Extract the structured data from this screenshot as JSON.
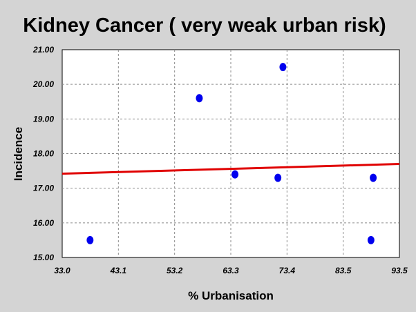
{
  "chart_data": {
    "type": "scatter",
    "title": "Kidney Cancer ( very weak urban risk)",
    "xlabel": "% Urbanisation",
    "ylabel": "Incidence",
    "xlim": [
      33.0,
      93.5
    ],
    "ylim": [
      15.0,
      21.0
    ],
    "x_ticks": [
      "33.0",
      "43.1",
      "53.2",
      "63.3",
      "73.4",
      "83.5",
      "93.5"
    ],
    "y_ticks": [
      "15.00",
      "16.00",
      "17.00",
      "18.00",
      "19.00",
      "20.00",
      "21.00"
    ],
    "grid": true,
    "points": [
      {
        "x": 38.0,
        "y": 15.5
      },
      {
        "x": 57.6,
        "y": 19.6
      },
      {
        "x": 64.0,
        "y": 17.4
      },
      {
        "x": 71.7,
        "y": 17.3
      },
      {
        "x": 72.6,
        "y": 20.5
      },
      {
        "x": 88.4,
        "y": 15.5
      },
      {
        "x": 88.8,
        "y": 17.3
      }
    ],
    "trendline": {
      "x": [
        33.0,
        93.5
      ],
      "y": [
        17.42,
        17.7
      ]
    },
    "colors": {
      "points": "#0000ee",
      "trendline": "#e00000",
      "background": "#d4d4d4",
      "plot_background": "#ffffff"
    }
  }
}
